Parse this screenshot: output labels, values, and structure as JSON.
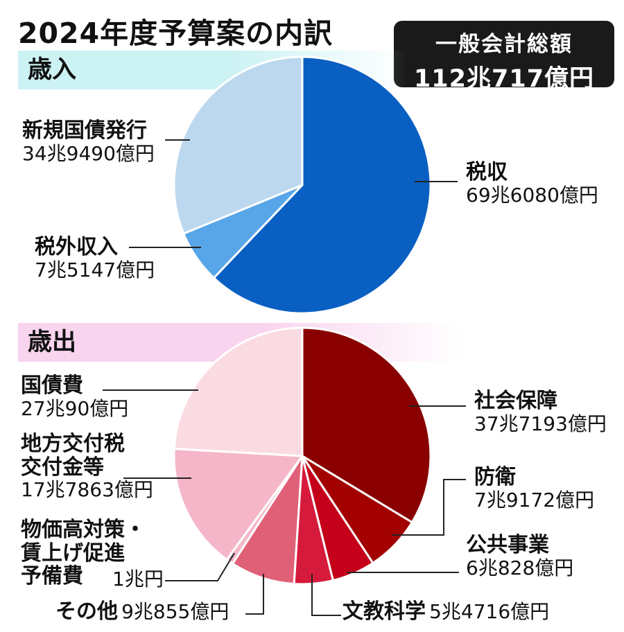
{
  "title": "2024年度予算案の内訳",
  "total": {
    "label": "一般会計総額",
    "value": "112兆717億円"
  },
  "revenue": {
    "section_label": "歳入"
  },
  "expenditure": {
    "section_label": "歳出"
  },
  "chart_data": [
    {
      "type": "pie",
      "title": "歳入",
      "unit": "億円",
      "start": "12 o'clock, clockwise",
      "slices": [
        {
          "name": "税収",
          "label": "69兆6080億円",
          "value": 696080,
          "color": "#0a5fc2"
        },
        {
          "name": "税外収入",
          "label": "7兆5147億円",
          "value": 75147,
          "color": "#58a6e8"
        },
        {
          "name": "新規国債発行",
          "label": "34兆9490億円",
          "value": 349490,
          "color": "#bcd8ef"
        }
      ]
    },
    {
      "type": "pie",
      "title": "歳出",
      "unit": "億円",
      "start": "12 o'clock, clockwise",
      "slices": [
        {
          "name": "社会保障",
          "label": "37兆7193億円",
          "value": 377193,
          "color": "#8a0000"
        },
        {
          "name": "防衛",
          "label": "7兆9172億円",
          "value": 79172,
          "color": "#a30000"
        },
        {
          "name": "公共事業",
          "label": "6兆828億円",
          "value": 60828,
          "color": "#c4001a"
        },
        {
          "name": "文教科学",
          "label": "5兆4716億円",
          "value": 54716,
          "color": "#d61a3c"
        },
        {
          "name": "その他",
          "label": "9兆855億円",
          "value": 90855,
          "color": "#e06078"
        },
        {
          "name": "物価高対策・\n賃上げ促進\n予備費",
          "label": "1兆円",
          "value": 10000,
          "color": "#f4b8c8"
        },
        {
          "name": "地方交付税\n交付金等",
          "label": "17兆7863億円",
          "value": 177863,
          "color": "#f4b6c8"
        },
        {
          "name": "国債費",
          "label": "27兆90億円",
          "value": 270090,
          "color": "#fbdbe2"
        }
      ]
    }
  ]
}
